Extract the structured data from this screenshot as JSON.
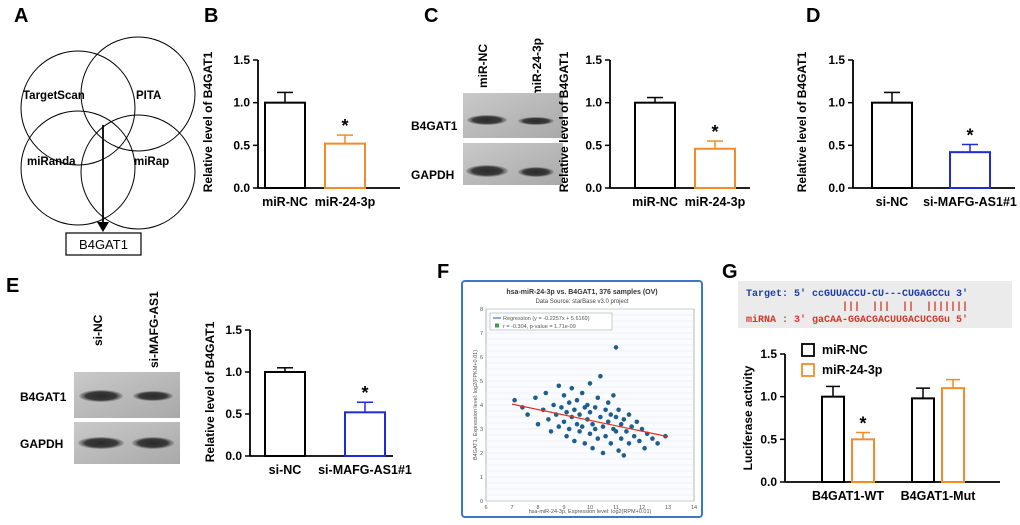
{
  "panels": {
    "A": {
      "letter": "A",
      "venn_labels": [
        "TargetScan",
        "PITA",
        "miRanda",
        "miRap"
      ],
      "result_box": "B4GAT1"
    },
    "B": {
      "letter": "B",
      "ylabel": "Relative level of B4GAT1",
      "yticks": [
        "0.0",
        "0.5",
        "1.0",
        "1.5"
      ],
      "categories": [
        "miR-NC",
        "miR-24-3p"
      ],
      "star": "*"
    },
    "C": {
      "letter": "C",
      "lanes": [
        "miR-NC",
        "miR-24-3p"
      ],
      "blot_labels": [
        "B4GAT1",
        "GAPDH"
      ],
      "ylabel": "Relative level of B4GAT1",
      "yticks": [
        "0.0",
        "0.5",
        "1.0",
        "1.5"
      ],
      "categories": [
        "miR-NC",
        "miR-24-3p"
      ],
      "star": "*"
    },
    "D": {
      "letter": "D",
      "ylabel": "Relative level of B4GAT1",
      "yticks": [
        "0.0",
        "0.5",
        "1.0",
        "1.5"
      ],
      "categories": [
        "si-NC",
        "si-MAFG-AS1#1"
      ],
      "star": "*"
    },
    "E": {
      "letter": "E",
      "lanes": [
        "si-NC",
        "si-MAFG-AS1"
      ],
      "blot_labels": [
        "B4GAT1",
        "GAPDH"
      ],
      "ylabel": "Relative level of B4GAT1",
      "yticks": [
        "0.0",
        "0.5",
        "1.0",
        "1.5"
      ],
      "categories": [
        "si-NC",
        "si-MAFG-AS1#1"
      ],
      "star": "*"
    },
    "F": {
      "letter": "F",
      "title": "hsa-miR-24-3p vs. B4GAT1, 376 samples (OV)",
      "subtitle": "Data Source: starBase v3.0 project",
      "legend_line": "Regression (y = -0.2257x + 5.6169)",
      "legend_stat": "r = -0.304, p-value = 1.71e-09",
      "xlabel": "hsa-miR-24-3p, Expression level: log2(RPM+0.01)",
      "ylabel": "B4GAT1, Expression level: log2(FPKM+0.01)",
      "xticks": [
        "6",
        "7",
        "8",
        "9",
        "10",
        "11",
        "12",
        "13",
        "14"
      ],
      "yticks": [
        "0",
        "1",
        "2",
        "3",
        "4",
        "5",
        "6",
        "7",
        "8"
      ]
    },
    "G": {
      "letter": "G",
      "target_line": "Target: 5' ccGUUACCU-CU---CUGAGCCu 3'",
      "pair_line": "|||  |||  ||  |||||||",
      "mirna_line": "miRNA : 3' gaCAA-GGACGACUUGACUCGGu 5'",
      "ylabel": "Luciferase activity",
      "yticks": [
        "0.0",
        "0.5",
        "1.0",
        "1.5"
      ],
      "legend": [
        "miR-NC",
        "miR-24-3p"
      ],
      "groups": [
        "B4GAT1-WT",
        "B4GAT1-Mut"
      ],
      "star": "*"
    }
  },
  "colors": {
    "nc": "#000000",
    "mir": "#f28c28",
    "si": "#1f2bd8",
    "regression": "#e03020",
    "points": "#1f5f8b"
  },
  "chart_data": [
    {
      "type": "bar",
      "panel": "B",
      "categories": [
        "miR-NC",
        "miR-24-3p"
      ],
      "values": [
        1.0,
        0.52
      ],
      "errors": [
        0.12,
        0.1
      ],
      "ylabel": "Relative level of B4GAT1",
      "ylim": [
        0,
        1.5
      ]
    },
    {
      "type": "bar",
      "panel": "C",
      "categories": [
        "miR-NC",
        "miR-24-3p"
      ],
      "values": [
        1.0,
        0.46
      ],
      "errors": [
        0.06,
        0.09
      ],
      "ylabel": "Relative level of B4GAT1",
      "ylim": [
        0,
        1.5
      ]
    },
    {
      "type": "bar",
      "panel": "D",
      "categories": [
        "si-NC",
        "si-MAFG-AS1#1"
      ],
      "values": [
        1.0,
        0.42
      ],
      "errors": [
        0.12,
        0.09
      ],
      "ylabel": "Relative level of B4GAT1",
      "ylim": [
        0,
        1.5
      ]
    },
    {
      "type": "bar",
      "panel": "E",
      "categories": [
        "si-NC",
        "si-MAFG-AS1#1"
      ],
      "values": [
        1.0,
        0.52
      ],
      "errors": [
        0.05,
        0.12
      ],
      "ylabel": "Relative level of B4GAT1",
      "ylim": [
        0,
        1.5
      ]
    },
    {
      "type": "scatter",
      "panel": "F",
      "title": "hsa-miR-24-3p vs. B4GAT1, 376 samples (OV)",
      "xlabel": "hsa-miR-24-3p, Expression level: log2(RPM+0.01)",
      "ylabel": "B4GAT1, Expression level: log2(FPKM+0.01)",
      "xlim": [
        6,
        14
      ],
      "ylim": [
        0,
        8
      ],
      "regression": {
        "slope": -0.2257,
        "intercept": 5.6169,
        "x_range": [
          7,
          13
        ]
      },
      "points": [
        [
          7.1,
          4.2
        ],
        [
          7.4,
          3.9
        ],
        [
          7.6,
          3.6
        ],
        [
          7.9,
          4.3
        ],
        [
          8.0,
          3.2
        ],
        [
          8.2,
          3.8
        ],
        [
          8.3,
          4.5
        ],
        [
          8.4,
          3.4
        ],
        [
          8.5,
          2.9
        ],
        [
          8.6,
          4.0
        ],
        [
          8.7,
          3.6
        ],
        [
          8.8,
          4.8
        ],
        [
          8.8,
          3.1
        ],
        [
          8.9,
          3.9
        ],
        [
          9.0,
          3.3
        ],
        [
          9.0,
          4.4
        ],
        [
          9.1,
          2.7
        ],
        [
          9.1,
          3.7
        ],
        [
          9.2,
          4.1
        ],
        [
          9.2,
          3.0
        ],
        [
          9.3,
          3.5
        ],
        [
          9.3,
          4.7
        ],
        [
          9.4,
          2.5
        ],
        [
          9.4,
          3.8
        ],
        [
          9.5,
          3.2
        ],
        [
          9.5,
          4.2
        ],
        [
          9.6,
          2.9
        ],
        [
          9.6,
          3.6
        ],
        [
          9.7,
          4.5
        ],
        [
          9.7,
          3.1
        ],
        [
          9.8,
          3.9
        ],
        [
          9.8,
          2.4
        ],
        [
          9.9,
          3.4
        ],
        [
          9.9,
          4.0
        ],
        [
          10.0,
          2.8
        ],
        [
          10.0,
          3.7
        ],
        [
          10.0,
          4.9
        ],
        [
          10.1,
          3.2
        ],
        [
          10.1,
          2.2
        ],
        [
          10.2,
          3.9
        ],
        [
          10.2,
          3.0
        ],
        [
          10.3,
          4.3
        ],
        [
          10.3,
          2.6
        ],
        [
          10.4,
          3.5
        ],
        [
          10.4,
          5.2
        ],
        [
          10.5,
          3.1
        ],
        [
          10.5,
          2.0
        ],
        [
          10.6,
          3.8
        ],
        [
          10.6,
          2.7
        ],
        [
          10.7,
          4.1
        ],
        [
          10.7,
          3.3
        ],
        [
          10.8,
          2.4
        ],
        [
          10.8,
          3.6
        ],
        [
          10.9,
          3.0
        ],
        [
          10.9,
          4.4
        ],
        [
          11.0,
          6.4
        ],
        [
          11.0,
          2.9
        ],
        [
          11.0,
          3.5
        ],
        [
          11.1,
          2.1
        ],
        [
          11.1,
          3.8
        ],
        [
          11.2,
          3.2
        ],
        [
          11.2,
          2.6
        ],
        [
          11.3,
          3.4
        ],
        [
          11.3,
          1.9
        ],
        [
          11.4,
          2.9
        ],
        [
          11.5,
          3.6
        ],
        [
          11.5,
          2.4
        ],
        [
          11.6,
          3.1
        ],
        [
          11.7,
          2.7
        ],
        [
          11.8,
          3.3
        ],
        [
          11.9,
          2.5
        ],
        [
          12.0,
          3.0
        ],
        [
          12.1,
          2.2
        ],
        [
          12.2,
          2.8
        ],
        [
          12.4,
          2.6
        ],
        [
          12.6,
          2.4
        ],
        [
          12.9,
          2.7
        ]
      ]
    },
    {
      "type": "bar",
      "panel": "G",
      "categories": [
        "B4GAT1-WT",
        "B4GAT1-Mut"
      ],
      "series": [
        {
          "name": "miR-NC",
          "values": [
            1.0,
            0.98
          ],
          "errors": [
            0.12,
            0.12
          ]
        },
        {
          "name": "miR-24-3p",
          "values": [
            0.5,
            1.1
          ],
          "errors": [
            0.08,
            0.1
          ]
        }
      ],
      "ylabel": "Luciferase activity",
      "ylim": [
        0,
        1.5
      ]
    }
  ]
}
